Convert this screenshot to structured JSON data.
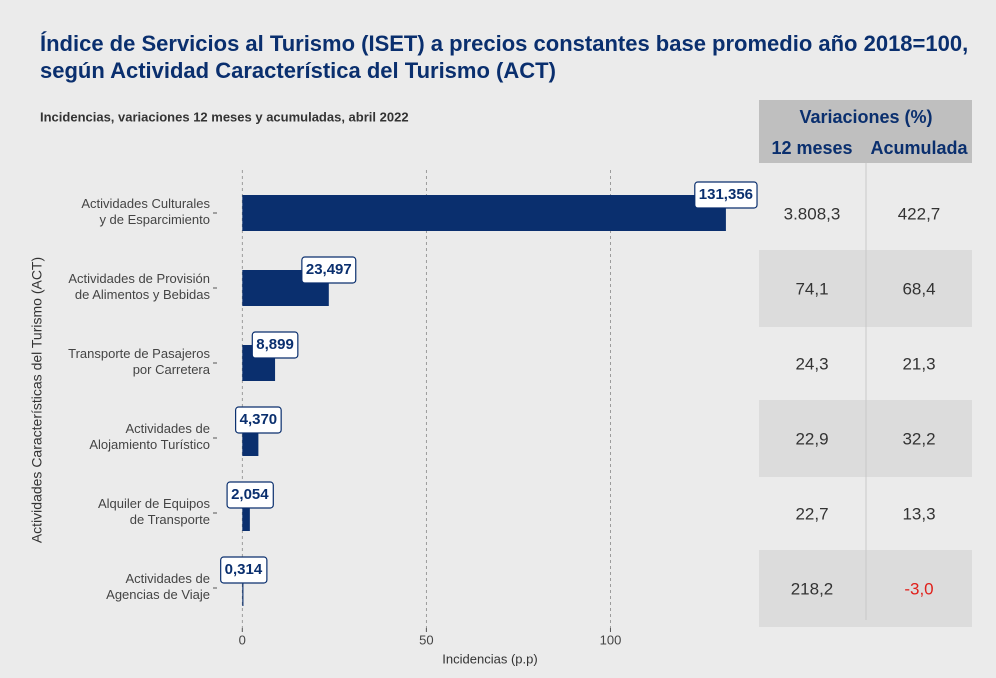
{
  "chart_data": {
    "type": "bar",
    "orientation": "horizontal",
    "title": "Índice de Servicios al Turismo (ISET) a precios constantes base promedio año 2018=100,\nsegún Actividad Característica del Turismo (ACT)",
    "subtitle": "Incidencias, variaciones 12 meses y acumuladas, abril 2022",
    "y_axis_label": "Actividades Características del Turismo (ACT)",
    "x_axis_label": "Incidencias (p.p)",
    "categories": [
      "Actividades Culturales\ny de Esparcimiento",
      "Actividades de Provisión\nde Alimentos y Bebidas",
      "Transporte de Pasajeros\npor Carretera",
      "Actividades de\nAlojamiento Turístico",
      "Alquiler de Equipos\nde Transporte",
      "Actividades de\nAgencias de Viaje"
    ],
    "values": [
      131.356,
      23.497,
      8.899,
      4.37,
      2.054,
      0.314
    ],
    "value_labels": [
      "131,356",
      "23,497",
      "8,899",
      "4,370",
      "2,054",
      "0,314"
    ],
    "color": "#0a2f6e",
    "xlim": [
      -6.6,
      137.9
    ],
    "xticks": [
      0,
      50,
      100
    ],
    "grid": true
  },
  "table": {
    "title": "Variaciones (%)",
    "columns": [
      "12 meses",
      "Acumulada"
    ],
    "rows": [
      [
        "3.808,3",
        "422,7"
      ],
      [
        "74,1",
        "68,4"
      ],
      [
        "24,3",
        "21,3"
      ],
      [
        "22,9",
        "32,2"
      ],
      [
        "22,7",
        "13,3"
      ],
      [
        "218,2",
        "-3,0"
      ]
    ],
    "negative_color": "#e0201b"
  }
}
